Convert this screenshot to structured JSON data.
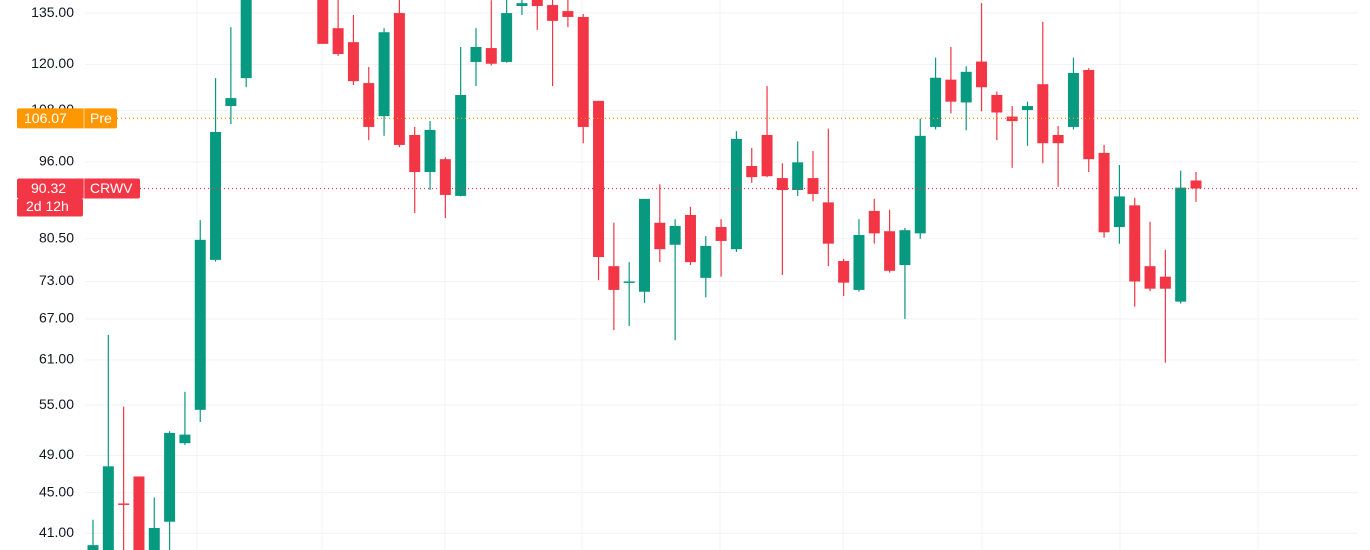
{
  "chart_data": {
    "type": "candlestick",
    "log_scale": true,
    "grid": true,
    "up_color": "#089981",
    "down_color": "#f23645",
    "ylim": [
      39.46,
      139.1
    ],
    "yticks": [
      {
        "value": 41,
        "label": "41.00"
      },
      {
        "value": 45,
        "label": "45.00"
      },
      {
        "value": 49,
        "label": "49.00"
      },
      {
        "value": 55,
        "label": "55.00"
      },
      {
        "value": 61,
        "label": "61.00"
      },
      {
        "value": 67,
        "label": "67.00"
      },
      {
        "value": 73,
        "label": "73.00"
      },
      {
        "value": 80.5,
        "label": "80.50"
      },
      {
        "value": 96,
        "label": "96.00"
      },
      {
        "value": 108,
        "label": "108.00"
      },
      {
        "value": 120,
        "label": "120.00"
      },
      {
        "value": 135,
        "label": "135.00"
      }
    ],
    "open": [
      39.0,
      39.2,
      43.9,
      46.7,
      39.2,
      42.1,
      50.4,
      54.4,
      76.7,
      109.1,
      116.3,
      null,
      null,
      null,
      null,
      141,
      130.4,
      126.3,
      115.0,
      106.6,
      135,
      102.1,
      93.8,
      96.6,
      88.8,
      120.7,
      124.6,
      120.7,
      137.2,
      139.2,
      137.5,
      135.6,
      133.8,
      110.4,
      75.6,
      72.9,
      71.3,
      83.5,
      79.4,
      85.0,
      73.6,
      82.7,
      78.6,
      95.1,
      102.1,
      92.5,
      90.0,
      92.5,
      87.5,
      76.5,
      71.6,
      85.8,
      81.9,
      75.8,
      81.5,
      104.0,
      115.9,
      110.0,
      120.8,
      111.9,
      106.5,
      108.1,
      114.7,
      102.1,
      104.0,
      118.5,
      98.0,
      82.7,
      86.9,
      75.6,
      73.8,
      69.7,
      92.0
    ],
    "high": [
      42.3,
      64.6,
      54.8,
      46.7,
      44.5,
      51.8,
      56.7,
      84.0,
      116.3,
      130.7,
      145,
      null,
      null,
      null,
      null,
      145,
      142,
      134.4,
      119.3,
      130.4,
      140,
      104.0,
      105.4,
      97.0,
      124.9,
      130.4,
      139,
      142,
      139.5,
      141,
      141,
      140,
      134.7,
      110.4,
      83.5,
      76.3,
      88.2,
      91.2,
      84.2,
      86.6,
      81.0,
      84.2,
      103.0,
      99.1,
      114.2,
      95.7,
      100.6,
      98.4,
      103.6,
      76.9,
      84.2,
      88.2,
      86.0,
      82.5,
      106.0,
      121.9,
      124.9,
      119.5,
      138.1,
      112.8,
      109.1,
      110.2,
      132.3,
      104.2,
      121.9,
      119.0,
      99.8,
      95.3,
      88.4,
      83.7,
      78.5,
      94.1,
      93.8
    ],
    "low": [
      38.5,
      39.0,
      38.5,
      38.5,
      38.8,
      39.0,
      50.2,
      52.9,
      76.4,
      104.7,
      113.9,
      null,
      null,
      null,
      null,
      125.8,
      122.4,
      114.5,
      100.9,
      101.9,
      99.3,
      85.4,
      90.0,
      84.4,
      88.7,
      114.2,
      119.7,
      120.5,
      134.4,
      129.9,
      114.2,
      130.7,
      100.2,
      73.2,
      65.3,
      65.9,
      69.5,
      76.3,
      63.8,
      75.8,
      70.4,
      73.8,
      78.1,
      91.5,
      92.7,
      74.1,
      88.8,
      87.7,
      75.6,
      70.6,
      71.3,
      79.6,
      74.5,
      67.0,
      80.5,
      103.4,
      107.3,
      103.2,
      107.8,
      100.9,
      94.7,
      99.6,
      95.7,
      90.7,
      103.4,
      93.8,
      80.7,
      79.6,
      68.9,
      71.4,
      60.6,
      69.4,
      87.6
    ],
    "close": [
      39.9,
      47.8,
      43.8,
      39.3,
      41.5,
      51.6,
      51.4,
      80.3,
      102.8,
      111.1,
      140,
      null,
      null,
      null,
      null,
      125.8,
      122.9,
      115.5,
      104.0,
      129.2,
      99.8,
      93.8,
      103.3,
      89.0,
      111.9,
      124.9,
      120.2,
      135,
      138.1,
      137.2,
      132.6,
      133.8,
      104.0,
      77.2,
      71.6,
      73.0,
      88.2,
      78.6,
      82.9,
      76.3,
      79.2,
      80.1,
      101.2,
      92.7,
      92.9,
      90.0,
      95.9,
      89.2,
      79.6,
      72.8,
      81.2,
      81.5,
      74.8,
      82.1,
      101.9,
      116.4,
      110.2,
      118.0,
      113.9,
      107.5,
      105.4,
      109.1,
      100.2,
      100.2,
      117.7,
      96.6,
      81.7,
      88.7,
      73.0,
      71.8,
      71.8,
      90.5,
      90.32
    ],
    "premarket": {
      "price": 106.07,
      "tag": "Pre",
      "color": "#ff9800"
    },
    "last": {
      "price": 90.32,
      "symbol": "CRWV",
      "countdown": "2d 12h"
    }
  }
}
